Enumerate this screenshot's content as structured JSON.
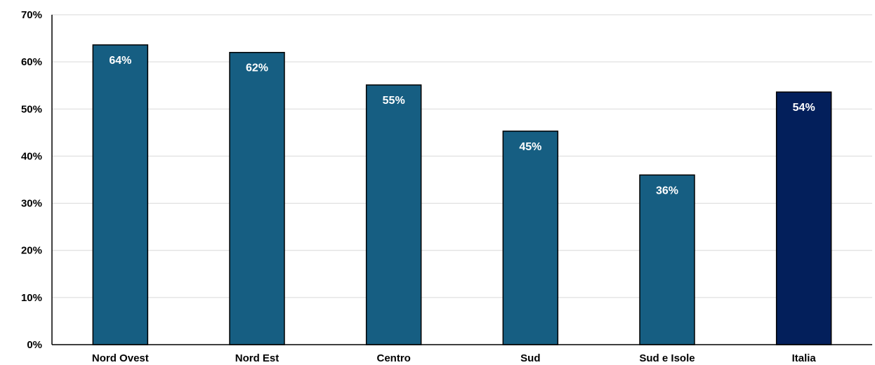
{
  "chart_data": {
    "type": "bar",
    "title": "",
    "xlabel": "",
    "ylabel": "",
    "categories": [
      "Nord Ovest",
      "Nord Est",
      "Centro",
      "Sud",
      "Sud e Isole",
      "Italia"
    ],
    "values": [
      63.6,
      62.0,
      55.1,
      45.3,
      36.0,
      53.6
    ],
    "data_labels": [
      "64%",
      "62%",
      "55%",
      "45%",
      "36%",
      "54%"
    ],
    "ylim": [
      0,
      70
    ],
    "yticks": [
      0,
      10,
      20,
      30,
      40,
      50,
      60,
      70
    ],
    "ytick_labels": [
      "0%",
      "10%",
      "20%",
      "30%",
      "40%",
      "50%",
      "60%",
      "70%"
    ],
    "grid": true,
    "legend": "none",
    "colors": {
      "bar": "#165e82",
      "highlight_bar": "#031f5b",
      "grid": "#d9d9d9"
    },
    "highlight_index": 5
  }
}
